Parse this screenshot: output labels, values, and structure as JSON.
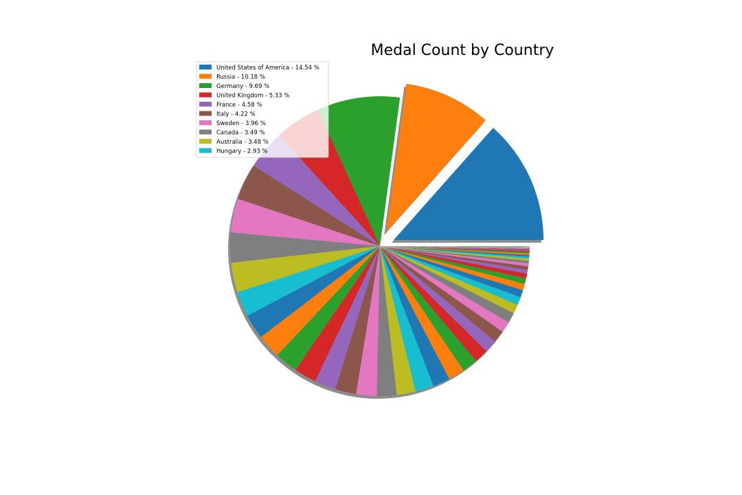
{
  "chart_data": {
    "type": "pie",
    "title": "Medal Count by Country",
    "legend_position": "upper-left",
    "shadow": true,
    "start_angle_deg": 0,
    "direction": "counterclockwise",
    "exploded": [
      "United States of America",
      "Russia"
    ],
    "labeled_slices": [
      {
        "name": "United States of America",
        "percent": 14.54,
        "color": "#1f77b4",
        "legend": "United States of America - 14.54 %"
      },
      {
        "name": "Russia",
        "percent": 10.18,
        "color": "#ff7f0e",
        "legend": "Russia - 10.18 %"
      },
      {
        "name": "Germany",
        "percent": 9.69,
        "color": "#2ca02c",
        "legend": "Germany - 9.69 %"
      },
      {
        "name": "United Kingdom",
        "percent": 5.33,
        "color": "#d62728",
        "legend": "United Kingdom - 5.33 %"
      },
      {
        "name": "France",
        "percent": 4.58,
        "color": "#9467bd",
        "legend": "France - 4.58 %"
      },
      {
        "name": "Italy",
        "percent": 4.22,
        "color": "#8c564b",
        "legend": "Italy - 4.22 %"
      },
      {
        "name": "Sweden",
        "percent": 3.96,
        "color": "#e377c2",
        "legend": "Sweden - 3.96 %"
      },
      {
        "name": "Canada",
        "percent": 3.49,
        "color": "#7f7f7f",
        "legend": "Canada - 3.49 %"
      },
      {
        "name": "Australia",
        "percent": 3.48,
        "color": "#bcbd22",
        "legend": "Australia - 3.48 %"
      },
      {
        "name": "Hungary",
        "percent": 2.93,
        "color": "#17becf",
        "legend": "Hungary - 2.93 %"
      }
    ],
    "other_slices_percent": [
      2.9,
      2.8,
      2.7,
      2.6,
      2.5,
      2.45,
      2.4,
      2.3,
      2.2,
      2.15,
      2.0,
      1.9,
      1.8,
      1.65,
      1.5,
      1.4,
      1.3,
      1.2,
      1.05,
      0.95,
      0.85,
      0.75,
      0.65,
      0.55,
      0.45,
      0.4,
      0.35,
      0.3,
      0.25,
      0.22,
      0.2,
      0.18,
      0.16,
      0.14,
      0.12,
      0.1,
      0.1,
      0.08,
      0.08,
      0.06
    ],
    "palette": [
      "#1f77b4",
      "#ff7f0e",
      "#2ca02c",
      "#d62728",
      "#9467bd",
      "#8c564b",
      "#e377c2",
      "#7f7f7f",
      "#bcbd22",
      "#17becf"
    ]
  }
}
